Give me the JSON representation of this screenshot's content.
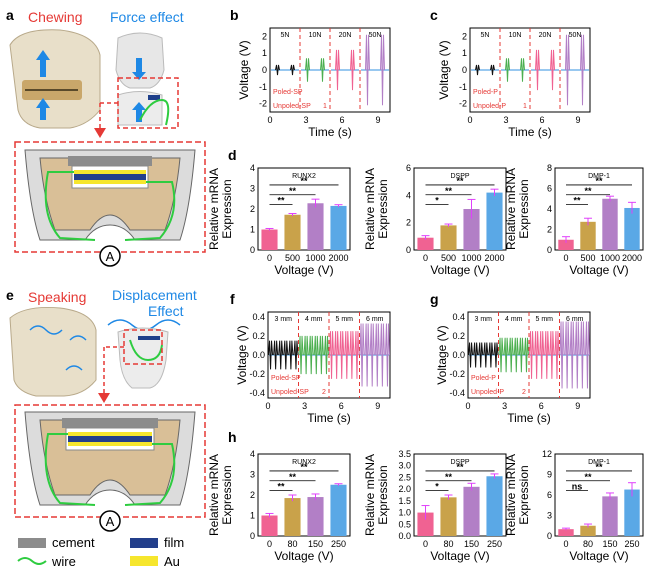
{
  "panel_a": {
    "label": "a",
    "chewing": "Chewing",
    "force_effect": "Force effect",
    "ammeter": "A"
  },
  "panel_e": {
    "label": "e",
    "speaking": "Speaking",
    "displacement": "Displacement",
    "effect": "Effect",
    "ammeter": "A"
  },
  "legend": {
    "cement": "cement",
    "film": "film",
    "wire": "wire",
    "au": "Au"
  },
  "colors": {
    "red": "#e53935",
    "blue": "#1e88e5",
    "pink": "#f06292",
    "gold": "#c9a24a",
    "purple": "#b27fc6",
    "lightblue": "#5aa8e6",
    "green": "#4caf50",
    "black": "#111111",
    "magenta": "#e040fb"
  },
  "chart_data": [
    {
      "id": "b",
      "type": "line",
      "xlabel": "Time (s)",
      "ylabel": "Voltage (V)",
      "xticks": [
        "0",
        "3",
        "6",
        "9"
      ],
      "yticks": [
        "2",
        "1",
        "0",
        "-1",
        "-2"
      ],
      "xlim": [
        0,
        10
      ],
      "ylim": [
        -2.5,
        2.5
      ],
      "segments": [
        "5N",
        "10N",
        "20N",
        "50N"
      ],
      "amplitudes": [
        0.3,
        0.7,
        1.2,
        2.1
      ],
      "legend": [
        "Poled-SP",
        "Unpoled-SP"
      ],
      "marker": "1"
    },
    {
      "id": "c",
      "type": "line",
      "xlabel": "Time (s)",
      "ylabel": "Voltage (V)",
      "xticks": [
        "0",
        "3",
        "6",
        "9"
      ],
      "yticks": [
        "2",
        "1",
        "0",
        "-1",
        "-2"
      ],
      "xlim": [
        0,
        10
      ],
      "ylim": [
        -2.5,
        2.5
      ],
      "segments": [
        "5N",
        "10N",
        "20N",
        "50N"
      ],
      "amplitudes": [
        0.3,
        0.7,
        1.2,
        2.1
      ],
      "legend": [
        "Poled-P",
        "Unpoled-P"
      ],
      "marker": "1"
    },
    {
      "id": "f",
      "type": "line",
      "xlabel": "Time (s)",
      "ylabel": "Voltage (V)",
      "xticks": [
        "0",
        "3",
        "6",
        "9"
      ],
      "yticks": [
        "0.4",
        "0.2",
        "0.0",
        "-0.2",
        "-0.4"
      ],
      "xlim": [
        0,
        10
      ],
      "ylim": [
        -0.45,
        0.45
      ],
      "segments": [
        "3 mm",
        "4 mm",
        "5 mm",
        "6 mm"
      ],
      "amplitudes": [
        0.15,
        0.2,
        0.25,
        0.33
      ],
      "legend": [
        "Poled-SP",
        "Unpoled-SP"
      ],
      "marker": "2"
    },
    {
      "id": "g",
      "type": "line",
      "xlabel": "Time (s)",
      "ylabel": "Voltage (V)",
      "xticks": [
        "0",
        "3",
        "6",
        "9"
      ],
      "yticks": [
        "0.4",
        "0.2",
        "0.0",
        "-0.2",
        "-0.4"
      ],
      "xlim": [
        0,
        10
      ],
      "ylim": [
        -0.45,
        0.45
      ],
      "segments": [
        "3 mm",
        "4 mm",
        "5 mm",
        "6 mm"
      ],
      "amplitudes": [
        0.13,
        0.18,
        0.25,
        0.35
      ],
      "legend": [
        "Poled-P",
        "Unpoled-P"
      ],
      "marker": "2"
    },
    {
      "id": "d1",
      "type": "bar",
      "title": "RUNX2",
      "xlabel": "Voltage (V)",
      "ylabel": "Relative mRNA Expression",
      "categories": [
        "0",
        "500",
        "1000",
        "2000"
      ],
      "values": [
        1.0,
        1.72,
        2.28,
        2.15
      ],
      "errors": [
        0.05,
        0.06,
        0.2,
        0.06
      ],
      "yticks": [
        "0",
        "1",
        "2",
        "3",
        "4"
      ],
      "ylim": [
        0,
        4
      ],
      "sig": [
        "**",
        "**",
        "**"
      ]
    },
    {
      "id": "d2",
      "type": "bar",
      "title": "DSPP",
      "xlabel": "Voltage (V)",
      "ylabel": "Relative mRNA Expression",
      "categories": [
        "0",
        "500",
        "1000",
        "2000"
      ],
      "values": [
        0.9,
        1.8,
        3.0,
        4.2
      ],
      "errors": [
        0.15,
        0.1,
        0.7,
        0.25
      ],
      "yticks": [
        "0",
        "2",
        "4",
        "6"
      ],
      "ylim": [
        0,
        6
      ],
      "sig": [
        "*",
        "**",
        "**"
      ]
    },
    {
      "id": "d3",
      "type": "bar",
      "title": "DMP-1",
      "xlabel": "Voltage (V)",
      "ylabel": "Relative mRNA Expression",
      "categories": [
        "0",
        "500",
        "1000",
        "2000"
      ],
      "values": [
        1.0,
        2.75,
        5.0,
        4.1
      ],
      "errors": [
        0.3,
        0.35,
        0.25,
        0.55
      ],
      "yticks": [
        "0",
        "2",
        "4",
        "6",
        "8"
      ],
      "ylim": [
        0,
        8
      ],
      "sig": [
        "**",
        "**",
        "**"
      ]
    },
    {
      "id": "h1",
      "type": "bar",
      "title": "RUNX2",
      "xlabel": "Voltage (V)",
      "ylabel": "Relative mRNA Expression",
      "categories": [
        "0",
        "80",
        "150",
        "250"
      ],
      "values": [
        1.0,
        1.85,
        1.9,
        2.5
      ],
      "errors": [
        0.1,
        0.15,
        0.15,
        0.05
      ],
      "yticks": [
        "0",
        "1",
        "2",
        "3",
        "4"
      ],
      "ylim": [
        0,
        4
      ],
      "sig": [
        "**",
        "**",
        "**"
      ]
    },
    {
      "id": "h2",
      "type": "bar",
      "title": "DSPP",
      "xlabel": "Voltage (V)",
      "ylabel": "Relative mRNA Expression",
      "categories": [
        "0",
        "80",
        "150",
        "250"
      ],
      "values": [
        1.0,
        1.65,
        2.1,
        2.55
      ],
      "errors": [
        0.3,
        0.1,
        0.15,
        0.1
      ],
      "yticks": [
        "0.0",
        "0.5",
        "1.0",
        "1.5",
        "2.0",
        "2.5",
        "3.0",
        "3.5"
      ],
      "ylim": [
        0,
        3.5
      ],
      "sig": [
        "*",
        "**",
        "**"
      ]
    },
    {
      "id": "h3",
      "type": "bar",
      "title": "DMP-1",
      "xlabel": "Voltage (V)",
      "ylabel": "Relative mRNA Expression",
      "categories": [
        "0",
        "80",
        "150",
        "250"
      ],
      "values": [
        1.0,
        1.5,
        5.8,
        6.8
      ],
      "errors": [
        0.15,
        0.25,
        0.5,
        1.0
      ],
      "yticks": [
        "0",
        "3",
        "6",
        "9",
        "12"
      ],
      "ylim": [
        0,
        12
      ],
      "sig": [
        "ns",
        "**",
        "**"
      ]
    }
  ]
}
